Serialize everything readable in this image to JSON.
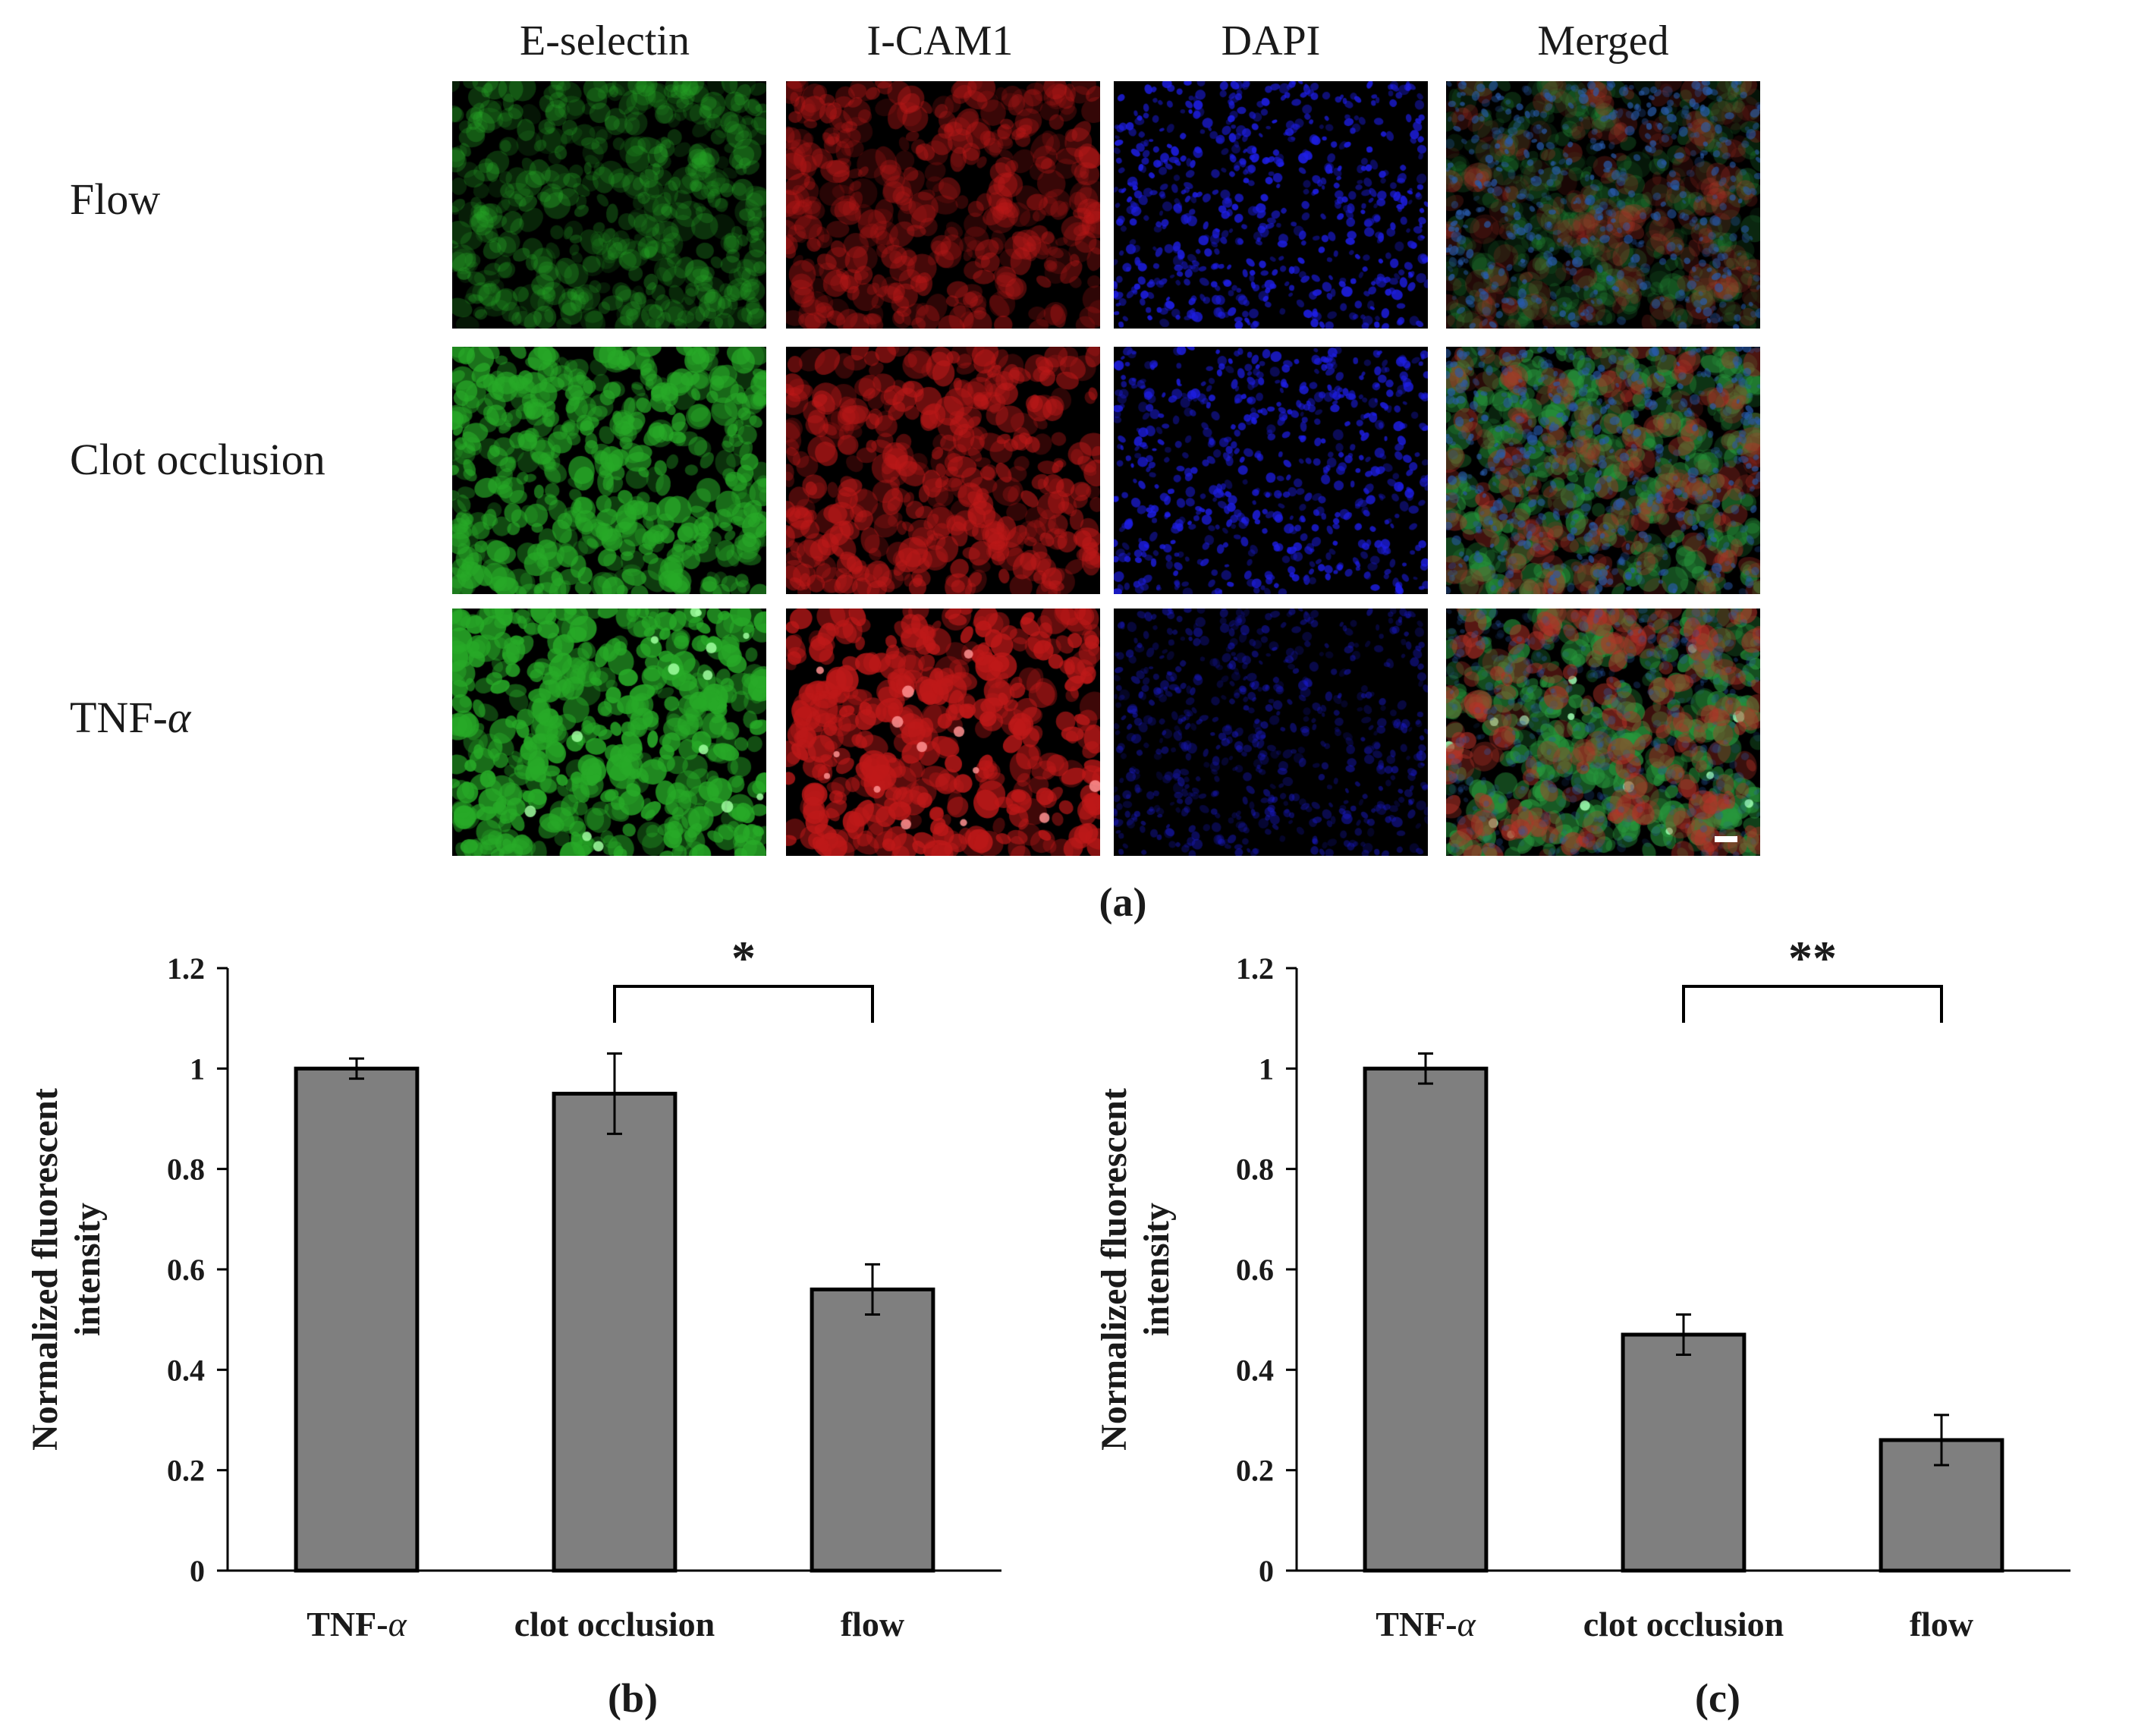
{
  "panel_a": {
    "label": "(a)",
    "columns": [
      "E-selectin",
      "I-CAM1",
      "DAPI",
      "Merged"
    ],
    "rows": [
      {
        "label": "Flow"
      },
      {
        "label": "Clot occlusion"
      },
      {
        "label_prefix": "TNF-",
        "label_greek": "α"
      }
    ],
    "channel_colors": {
      "green": "#3fae3f",
      "red": "#d42020",
      "blue": "#2a2ae0"
    }
  },
  "chart_data": [
    {
      "id": "b",
      "type": "bar",
      "panel_label": "(b)",
      "categories": [
        "TNF-α",
        "clot occlusion",
        "flow"
      ],
      "values": [
        1.0,
        0.95,
        0.56
      ],
      "errors": [
        0.02,
        0.08,
        0.05
      ],
      "ylabel": "Normalized fluorescent intensity",
      "ylim": [
        0,
        1.2
      ],
      "yticks": [
        "0",
        "0.2",
        "0.4",
        "0.6",
        "0.8",
        "1",
        "1.2"
      ],
      "grid": false,
      "bar_color": "#7f7f7f",
      "significance": {
        "from": 1,
        "to": 2,
        "text": "*"
      }
    },
    {
      "id": "c",
      "type": "bar",
      "panel_label": "(c)",
      "categories": [
        "TNF-α",
        "clot occlusion",
        "flow"
      ],
      "values": [
        1.0,
        0.47,
        0.26
      ],
      "errors": [
        0.03,
        0.04,
        0.05
      ],
      "ylabel": "Normalized fluorescent intensity",
      "ylim": [
        0,
        1.2
      ],
      "yticks": [
        "0",
        "0.2",
        "0.4",
        "0.6",
        "0.8",
        "1",
        "1.2"
      ],
      "grid": false,
      "bar_color": "#7f7f7f",
      "significance": {
        "from": 1,
        "to": 2,
        "text": "**"
      }
    }
  ]
}
